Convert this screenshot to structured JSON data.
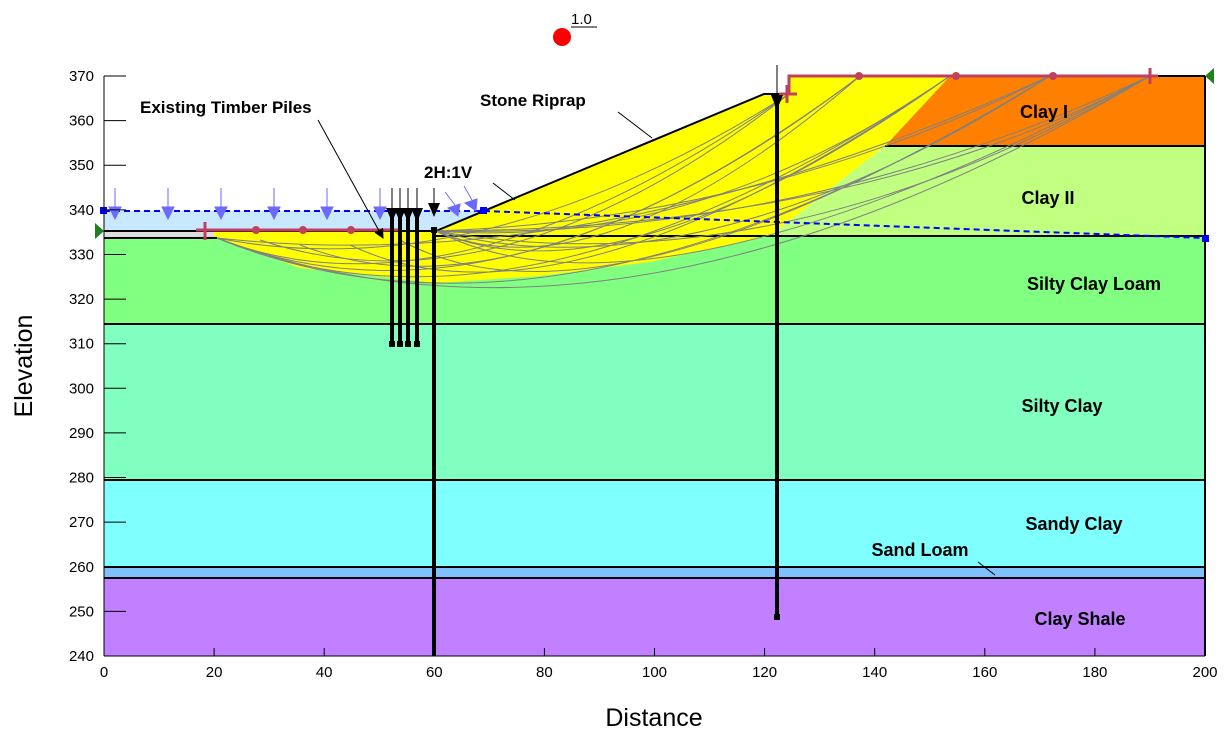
{
  "diagram": {
    "x_axis": {
      "label": "Distance",
      "min": 0,
      "max": 200,
      "ticks": [
        0,
        20,
        40,
        60,
        80,
        100,
        120,
        140,
        160,
        180,
        200
      ]
    },
    "y_axis": {
      "label": "Elevation",
      "min": 240,
      "max": 372,
      "ticks": [
        240,
        250,
        260,
        270,
        280,
        290,
        300,
        310,
        320,
        330,
        340,
        350,
        360,
        370
      ]
    },
    "factor_of_safety": "1.0",
    "colors": {
      "clay_i": "#ff8000",
      "clay_ii": "#c0ff80",
      "silty_clay_loam": "#80ff80",
      "silty_clay": "#80ffc0",
      "sandy_clay": "#80ffff",
      "sand_loam": "#80c0ff",
      "clay_shale": "#c080ff",
      "riprap": "#ffff00",
      "water": "#c8e8ff",
      "ground_line": "#c04060",
      "water_line": "#0000ff",
      "slip_surface": "#808080",
      "fos_marker": "#ff0000"
    },
    "layers": [
      {
        "key": "clay_i",
        "label": "Clay I"
      },
      {
        "key": "clay_ii",
        "label": "Clay II"
      },
      {
        "key": "silty_clay_loam",
        "label": "Silty Clay Loam"
      },
      {
        "key": "silty_clay",
        "label": "Silty Clay"
      },
      {
        "key": "sandy_clay",
        "label": "Sandy Clay"
      },
      {
        "key": "sand_loam",
        "label": "Sand Loam"
      },
      {
        "key": "clay_shale",
        "label": "Clay Shale"
      }
    ],
    "annotations": {
      "piles": "Existing Timber Piles",
      "riprap": "Stone Riprap",
      "slope": "2H:1V"
    }
  }
}
